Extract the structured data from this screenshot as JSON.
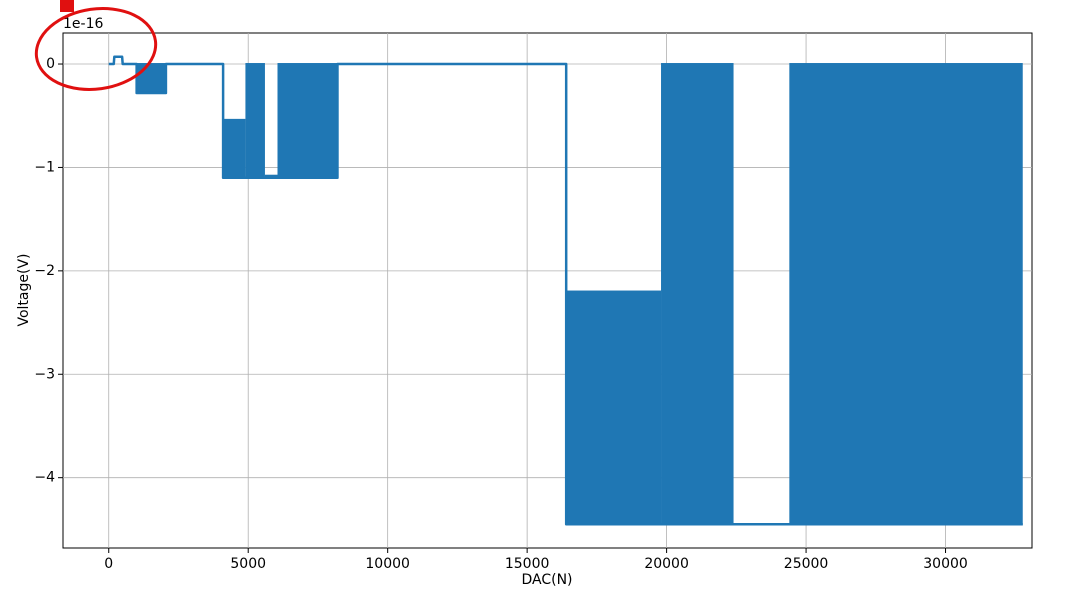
{
  "chart_data": {
    "type": "line",
    "x_label": "DAC(N)",
    "y_label": "Voltage(V)",
    "offset_label": "1e-16",
    "color": "#1f77b4",
    "grid": true,
    "xlim": [
      -1640,
      33100
    ],
    "ylim": [
      -4.68,
      0.3
    ],
    "xticks": [
      0,
      5000,
      10000,
      15000,
      20000,
      25000,
      30000
    ],
    "yticks": [
      {
        "value": 0,
        "label": "0"
      },
      {
        "value": -1,
        "label": "−1"
      },
      {
        "value": -2,
        "label": "−2"
      },
      {
        "value": -3,
        "label": "−3"
      },
      {
        "value": -4,
        "label": "−4"
      }
    ],
    "series": [
      {
        "x": [
          0,
          180,
          200,
          480,
          500,
          1000,
          1000,
          2050,
          2050,
          4100,
          4100,
          8200,
          8200,
          16400,
          16400,
          32768
        ],
        "values": [
          0,
          0,
          0.07,
          0.07,
          0,
          0,
          -0.28,
          -0.28,
          0,
          0,
          -1.1,
          -1.1,
          0,
          0,
          -4.45,
          -4.45
        ]
      }
    ],
    "bands": [
      {
        "x0": 1000,
        "x1": 2050,
        "low": -0.28,
        "high": 0
      },
      {
        "x0": 4100,
        "x1": 4900,
        "low": -1.1,
        "high": -0.54
      },
      {
        "x0": 4900,
        "x1": 5600,
        "low": -1.1,
        "high": 0
      },
      {
        "x0": 5600,
        "x1": 6050,
        "low": -1.1,
        "high": -1.08
      },
      {
        "x0": 6050,
        "x1": 8200,
        "low": -1.1,
        "high": 0
      },
      {
        "x0": 16400,
        "x1": 19800,
        "low": -4.45,
        "high": -2.2
      },
      {
        "x0": 19800,
        "x1": 22400,
        "low": -4.45,
        "high": 0
      },
      {
        "x0": 24400,
        "x1": 32768,
        "low": -4.45,
        "high": 0
      }
    ]
  }
}
